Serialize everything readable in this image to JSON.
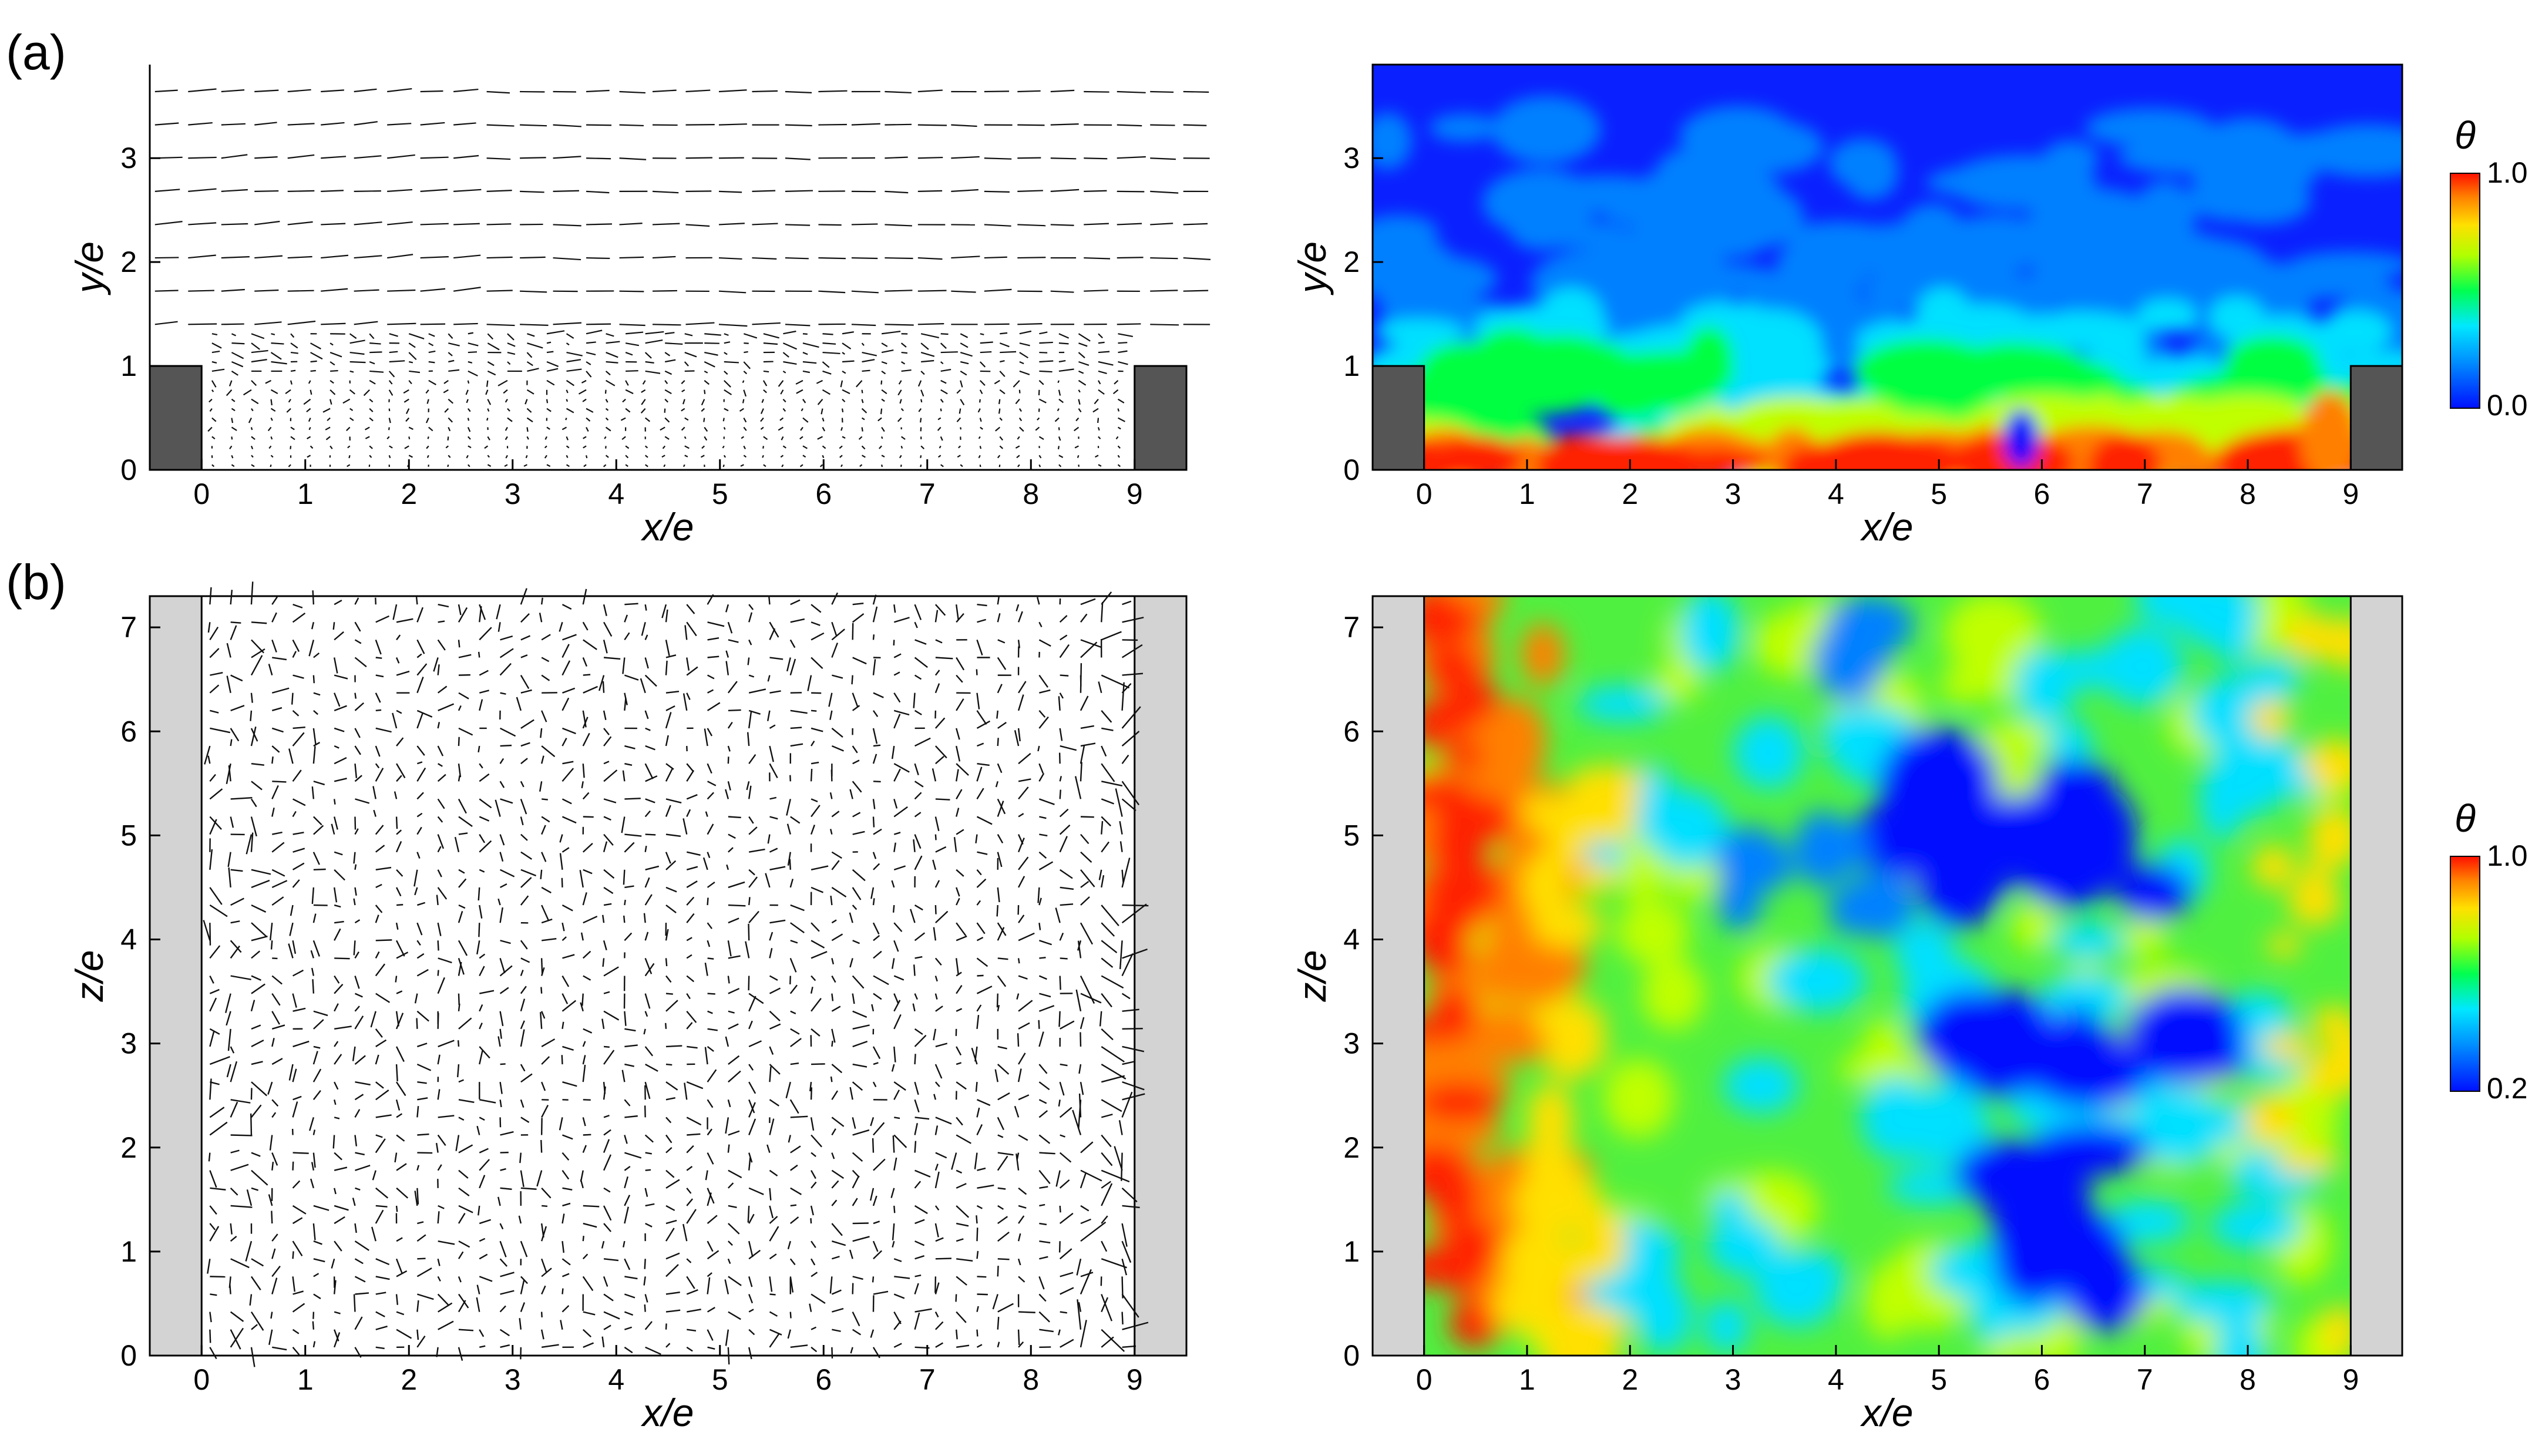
{
  "panel_labels": [
    "(a)",
    "(b)"
  ],
  "colors": {
    "block_dark": "#555555",
    "wall_light": "#d3d3d3",
    "colormap": [
      "#0010ff",
      "#0080ff",
      "#00e0ff",
      "#00ff40",
      "#c0ff00",
      "#ffe000",
      "#ff8000",
      "#ff2000"
    ]
  },
  "chart_data": [
    {
      "id": "a-vector",
      "type": "quiver",
      "xlabel": "x/e",
      "ylabel": "y/e",
      "xlim": [
        -0.5,
        9.5
      ],
      "ylim": [
        0,
        3.9
      ],
      "xticks": [
        "0",
        "1",
        "2",
        "3",
        "4",
        "5",
        "6",
        "7",
        "8",
        "9"
      ],
      "yticks": [
        "0",
        "1",
        "2",
        "3"
      ],
      "obstacles": [
        {
          "x": [
            -0.5,
            0
          ],
          "y": [
            0,
            1
          ]
        },
        {
          "x": [
            9,
            9.5
          ],
          "y": [
            0,
            1
          ]
        }
      ]
    },
    {
      "id": "a-contour",
      "type": "heatmap",
      "xlabel": "x/e",
      "ylabel": "y/e",
      "xlim": [
        -0.5,
        9.5
      ],
      "ylim": [
        0,
        3.9
      ],
      "xticks": [
        "0",
        "1",
        "2",
        "3",
        "4",
        "5",
        "6",
        "7",
        "8",
        "9"
      ],
      "yticks": [
        "0",
        "1",
        "2",
        "3"
      ],
      "colorbar": {
        "label": "θ",
        "min": "0.0",
        "max": "1.0"
      },
      "obstacles": [
        {
          "x": [
            -0.5,
            0
          ],
          "y": [
            0,
            1
          ]
        },
        {
          "x": [
            9,
            9.5
          ],
          "y": [
            0,
            1
          ]
        }
      ]
    },
    {
      "id": "b-vector",
      "type": "quiver",
      "xlabel": "x/e",
      "ylabel": "z/e",
      "xlim": [
        -0.5,
        9.5
      ],
      "ylim": [
        0,
        7.3
      ],
      "xticks": [
        "0",
        "1",
        "2",
        "3",
        "4",
        "5",
        "6",
        "7",
        "8",
        "9"
      ],
      "yticks": [
        "0",
        "1",
        "2",
        "3",
        "4",
        "5",
        "6",
        "7"
      ],
      "walls": [
        {
          "x": [
            -0.5,
            0
          ]
        },
        {
          "x": [
            9,
            9.5
          ]
        }
      ]
    },
    {
      "id": "b-contour",
      "type": "heatmap",
      "xlabel": "x/e",
      "ylabel": "z/e",
      "xlim": [
        -0.5,
        9.5
      ],
      "ylim": [
        0,
        7.3
      ],
      "xticks": [
        "0",
        "1",
        "2",
        "3",
        "4",
        "5",
        "6",
        "7",
        "8",
        "9"
      ],
      "yticks": [
        "0",
        "1",
        "2",
        "3",
        "4",
        "5",
        "6",
        "7"
      ],
      "colorbar": {
        "label": "θ",
        "min": "0.2",
        "max": "1.0"
      },
      "walls": [
        {
          "x": [
            -0.5,
            0
          ]
        },
        {
          "x": [
            9,
            9.5
          ]
        }
      ]
    }
  ]
}
